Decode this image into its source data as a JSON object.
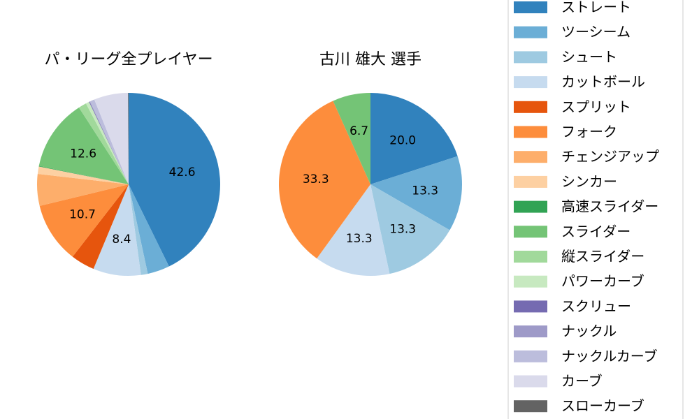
{
  "chart_data": [
    {
      "type": "pie",
      "title": "パ・リーグ全プレイヤー",
      "slices": [
        {
          "label": "ストレート",
          "value": 42.6,
          "color": "#3182bd",
          "shown": "42.6"
        },
        {
          "label": "ツーシーム",
          "value": 3.9,
          "color": "#6baed6"
        },
        {
          "label": "シュート",
          "value": 1.2,
          "color": "#9ecae1"
        },
        {
          "label": "カットボール",
          "value": 8.4,
          "color": "#c6dbef",
          "shown": "8.4"
        },
        {
          "label": "スプリット",
          "value": 4.2,
          "color": "#e6550d"
        },
        {
          "label": "フォーク",
          "value": 10.7,
          "color": "#fd8d3c",
          "shown": "10.7"
        },
        {
          "label": "チェンジアップ",
          "value": 5.6,
          "color": "#fdae6b"
        },
        {
          "label": "シンカー",
          "value": 1.3,
          "color": "#fdd0a2"
        },
        {
          "label": "高速スライダー",
          "value": 0.1,
          "color": "#31a354"
        },
        {
          "label": "スライダー",
          "value": 12.6,
          "color": "#74c476",
          "shown": "12.6"
        },
        {
          "label": "縦スライダー",
          "value": 1.4,
          "color": "#a1d99b"
        },
        {
          "label": "パワーカーブ",
          "value": 0.6,
          "color": "#c7e9c0"
        },
        {
          "label": "スクリュー",
          "value": 0.1,
          "color": "#756bb1"
        },
        {
          "label": "ナックル",
          "value": 0.1,
          "color": "#9e9ac8"
        },
        {
          "label": "ナックルカーブ",
          "value": 0.8,
          "color": "#bcbddc"
        },
        {
          "label": "カーブ",
          "value": 6.0,
          "color": "#dadaeb"
        },
        {
          "label": "スローカーブ",
          "value": 0.1,
          "color": "#636363"
        }
      ]
    },
    {
      "type": "pie",
      "title": "古川 雄大  選手",
      "slices": [
        {
          "label": "ストレート",
          "value": 20.0,
          "color": "#3182bd",
          "shown": "20.0"
        },
        {
          "label": "ツーシーム",
          "value": 13.3,
          "color": "#6baed6",
          "shown": "13.3"
        },
        {
          "label": "シュート",
          "value": 13.3,
          "color": "#9ecae1",
          "shown": "13.3"
        },
        {
          "label": "カットボール",
          "value": 13.3,
          "color": "#c6dbef",
          "shown": "13.3"
        },
        {
          "label": "フォーク",
          "value": 33.3,
          "color": "#fd8d3c",
          "shown": "33.3"
        },
        {
          "label": "スライダー",
          "value": 6.7,
          "color": "#74c476",
          "shown": "6.7"
        }
      ]
    }
  ],
  "legend": {
    "placement": "right",
    "items": [
      {
        "label": "ストレート",
        "color": "#3182bd"
      },
      {
        "label": "ツーシーム",
        "color": "#6baed6"
      },
      {
        "label": "シュート",
        "color": "#9ecae1"
      },
      {
        "label": "カットボール",
        "color": "#c6dbef"
      },
      {
        "label": "スプリット",
        "color": "#e6550d"
      },
      {
        "label": "フォーク",
        "color": "#fd8d3c"
      },
      {
        "label": "チェンジアップ",
        "color": "#fdae6b"
      },
      {
        "label": "シンカー",
        "color": "#fdd0a2"
      },
      {
        "label": "高速スライダー",
        "color": "#31a354"
      },
      {
        "label": "スライダー",
        "color": "#74c476"
      },
      {
        "label": "縦スライダー",
        "color": "#a1d99b"
      },
      {
        "label": "パワーカーブ",
        "color": "#c7e9c0"
      },
      {
        "label": "スクリュー",
        "color": "#756bb1"
      },
      {
        "label": "ナックル",
        "color": "#9e9ac8"
      },
      {
        "label": "ナックルカーブ",
        "color": "#bcbddc"
      },
      {
        "label": "カーブ",
        "color": "#dadaeb"
      },
      {
        "label": "スローカーブ",
        "color": "#636363"
      }
    ]
  }
}
